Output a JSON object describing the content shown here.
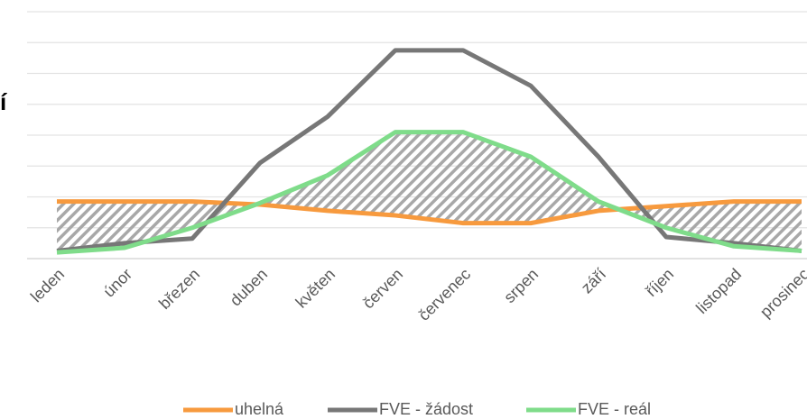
{
  "chart_data": {
    "type": "line",
    "annotation": "í",
    "categories": [
      "leden",
      "únor",
      "březen",
      "duben",
      "květen",
      "červen",
      "červenec",
      "srpen",
      "září",
      "říjen",
      "listopad",
      "prosinec"
    ],
    "series": [
      {
        "name": "uhelná",
        "color": "#f79a3e",
        "values": [
          1.85,
          1.85,
          1.85,
          1.75,
          1.55,
          1.4,
          1.15,
          1.15,
          1.55,
          1.7,
          1.85,
          1.85
        ]
      },
      {
        "name": "FVE - žádost",
        "color": "#777777",
        "values": [
          0.25,
          0.5,
          0.65,
          3.1,
          4.6,
          6.75,
          6.75,
          5.6,
          3.3,
          0.7,
          0.5,
          0.25
        ]
      },
      {
        "name": "FVE - reál",
        "color": "#7fdc8a",
        "values": [
          0.2,
          0.35,
          1,
          1.8,
          2.7,
          4.1,
          4.1,
          3.3,
          1.85,
          1,
          0.4,
          0.25
        ]
      }
    ],
    "ylim": [
      0,
      8
    ],
    "yticks": [
      0,
      1,
      2,
      3,
      4,
      5,
      6,
      7,
      8
    ],
    "grid": true,
    "hatch_between": [
      0,
      2
    ]
  }
}
